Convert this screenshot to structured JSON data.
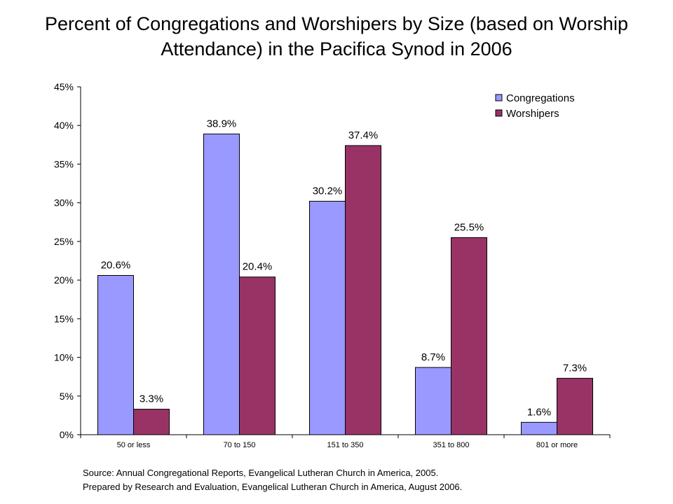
{
  "title": "Percent of Congregations and Worshipers by Size (based on Worship Attendance) in the Pacifica Synod in 2006",
  "source": [
    "Source:  Annual Congregational Reports, Evangelical Lutheran Church in America, 2005.",
    "Prepared by Research and Evaluation, Evangelical Lutheran Church in America, August 2006."
  ],
  "chart_data": {
    "type": "bar",
    "title": "Percent of Congregations and Worshipers by Size (based on Worship Attendance) in the Pacifica Synod in 2006",
    "xlabel": "",
    "ylabel": "",
    "categories": [
      "50 or less",
      "70 to 150",
      "151 to 350",
      "351 to 800",
      "801 or more"
    ],
    "series": [
      {
        "name": "Congregations",
        "values": [
          20.6,
          38.9,
          30.2,
          8.7,
          1.6
        ],
        "labels": [
          "20.6%",
          "38.9%",
          "30.2%",
          "8.7%",
          "1.6%"
        ],
        "color": "#9999ff"
      },
      {
        "name": "Worshipers",
        "values": [
          3.3,
          20.4,
          37.4,
          25.5,
          7.3
        ],
        "labels": [
          "3.3%",
          "20.4%",
          "37.4%",
          "25.5%",
          "7.3%"
        ],
        "color": "#993366"
      }
    ],
    "ylim": [
      0,
      45
    ],
    "yticks": [
      0,
      5,
      10,
      15,
      20,
      25,
      30,
      35,
      40,
      45
    ],
    "ytick_labels": [
      "0%",
      "5%",
      "10%",
      "15%",
      "20%",
      "25%",
      "30%",
      "35%",
      "40%",
      "45%"
    ],
    "grid": false,
    "legend_position": "top-right"
  }
}
